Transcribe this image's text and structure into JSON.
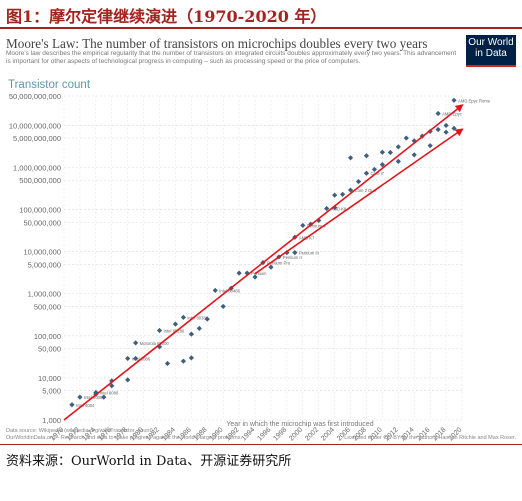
{
  "figure": {
    "caption": "图1：摩尔定律继续演进（1970-2020 年）",
    "source": "资料来源：OurWorld in Data、开源证券研究所"
  },
  "chart_data": {
    "type": "scatter",
    "title": "Moore's Law: The number of transistors on microchips doubles every two years",
    "subtitle": "Moore's law describes the empirical regularity that the number of transistors on integrated circuits doubles approximately every two years. This advancement is important for other aspects of technological progress in computing – such as processing speed or the price of computers.",
    "logo": "Our World in Data",
    "ylabel": "Transistor count",
    "xlabel": "Year in which the microchip was first introduced",
    "yscale": "log",
    "ylim": [
      1000,
      50000000000
    ],
    "xlim": [
      1970,
      2020
    ],
    "grid": true,
    "x_ticks": [
      "1970",
      "1972",
      "1974",
      "1976",
      "1978",
      "1980",
      "1982",
      "1984",
      "1986",
      "1988",
      "1990",
      "1992",
      "1994",
      "1996",
      "1998",
      "2000",
      "2002",
      "2004",
      "2006",
      "2008",
      "2010",
      "2012",
      "2014",
      "2016",
      "2018",
      "2020"
    ],
    "y_ticks": [
      {
        "value": 1000,
        "label": "1,000"
      },
      {
        "value": 5000,
        "label": "5,000"
      },
      {
        "value": 10000,
        "label": "10,000"
      },
      {
        "value": 50000,
        "label": "50,000"
      },
      {
        "value": 100000,
        "label": "100,000"
      },
      {
        "value": 500000,
        "label": "500,000"
      },
      {
        "value": 1000000,
        "label": "1,000,000"
      },
      {
        "value": 5000000,
        "label": "5,000,000"
      },
      {
        "value": 10000000,
        "label": "10,000,000"
      },
      {
        "value": 50000000,
        "label": "50,000,000"
      },
      {
        "value": 100000000,
        "label": "100,000,000"
      },
      {
        "value": 500000000,
        "label": "500,000,000"
      },
      {
        "value": 1000000000,
        "label": "1,000,000,000"
      },
      {
        "value": 5000000000,
        "label": "5,000,000,000"
      },
      {
        "value": 10000000000,
        "label": "10,000,000,000"
      },
      {
        "value": 50000000000,
        "label": "50,000,000,000"
      }
    ],
    "point_color": "#3d5f80",
    "trend_color": "#e3141b",
    "points": [
      {
        "x": 1971,
        "y": 2300,
        "label": "Intel 4004"
      },
      {
        "x": 1972,
        "y": 3500,
        "label": "Intel 8008"
      },
      {
        "x": 1974,
        "y": 4500,
        "label": "Intel 8080"
      },
      {
        "x": 1974,
        "y": 4100
      },
      {
        "x": 1975,
        "y": 3500
      },
      {
        "x": 1976,
        "y": 6500
      },
      {
        "x": 1976,
        "y": 8500
      },
      {
        "x": 1978,
        "y": 29000,
        "label": "Intel 8086"
      },
      {
        "x": 1978,
        "y": 9000
      },
      {
        "x": 1979,
        "y": 68000,
        "label": "Motorola 68000"
      },
      {
        "x": 1979,
        "y": 29000
      },
      {
        "x": 1982,
        "y": 134000,
        "label": "Intel 80286"
      },
      {
        "x": 1982,
        "y": 55000
      },
      {
        "x": 1983,
        "y": 22000
      },
      {
        "x": 1984,
        "y": 190000
      },
      {
        "x": 1985,
        "y": 275000,
        "label": "Intel 80386"
      },
      {
        "x": 1985,
        "y": 25000
      },
      {
        "x": 1986,
        "y": 30000
      },
      {
        "x": 1986,
        "y": 110000
      },
      {
        "x": 1987,
        "y": 150000
      },
      {
        "x": 1988,
        "y": 250000
      },
      {
        "x": 1989,
        "y": 1200000,
        "label": "Intel 80486"
      },
      {
        "x": 1990,
        "y": 500000
      },
      {
        "x": 1991,
        "y": 1350000
      },
      {
        "x": 1992,
        "y": 3100000
      },
      {
        "x": 1993,
        "y": 3100000,
        "label": "Pentium"
      },
      {
        "x": 1994,
        "y": 2500000
      },
      {
        "x": 1995,
        "y": 5500000,
        "label": "Pentium Pro"
      },
      {
        "x": 1996,
        "y": 4300000
      },
      {
        "x": 1997,
        "y": 7500000,
        "label": "Pentium II"
      },
      {
        "x": 1998,
        "y": 9500000
      },
      {
        "x": 1999,
        "y": 9500000,
        "label": "Pentium III"
      },
      {
        "x": 1999,
        "y": 22000000,
        "label": "AMD K7"
      },
      {
        "x": 2000,
        "y": 42000000,
        "label": "Pentium 4"
      },
      {
        "x": 2001,
        "y": 45000000
      },
      {
        "x": 2002,
        "y": 55000000
      },
      {
        "x": 2003,
        "y": 105900000,
        "label": "AMD K8"
      },
      {
        "x": 2004,
        "y": 112000000
      },
      {
        "x": 2004,
        "y": 220000000
      },
      {
        "x": 2005,
        "y": 230000000
      },
      {
        "x": 2006,
        "y": 291000000,
        "label": "Core 2 Duo"
      },
      {
        "x": 2006,
        "y": 1700000000
      },
      {
        "x": 2007,
        "y": 463000000
      },
      {
        "x": 2008,
        "y": 731000000,
        "label": "Core i7"
      },
      {
        "x": 2008,
        "y": 1900000000
      },
      {
        "x": 2009,
        "y": 900000000
      },
      {
        "x": 2010,
        "y": 1170000000
      },
      {
        "x": 2010,
        "y": 2300000000
      },
      {
        "x": 2011,
        "y": 2270000000
      },
      {
        "x": 2012,
        "y": 1400000000
      },
      {
        "x": 2012,
        "y": 3100000000
      },
      {
        "x": 2013,
        "y": 5000000000
      },
      {
        "x": 2014,
        "y": 2000000000
      },
      {
        "x": 2014,
        "y": 4300000000
      },
      {
        "x": 2015,
        "y": 5560000000
      },
      {
        "x": 2016,
        "y": 7200000000
      },
      {
        "x": 2016,
        "y": 3300000000
      },
      {
        "x": 2017,
        "y": 8000000000
      },
      {
        "x": 2017,
        "y": 19200000000,
        "label": "AMD Epyc"
      },
      {
        "x": 2018,
        "y": 6900000000
      },
      {
        "x": 2018,
        "y": 10000000000
      },
      {
        "x": 2019,
        "y": 39540000000,
        "label": "AMD Epyc Rome"
      },
      {
        "x": 2019,
        "y": 8500000000
      }
    ],
    "trends": [
      {
        "from": [
          1970,
          1000
        ],
        "to": [
          2020,
          30000000000
        ]
      },
      {
        "from": [
          1994,
          3000000
        ],
        "to": [
          2020,
          8000000000
        ]
      }
    ],
    "footer_left": "Data source: Wikipedia (wikipedia.org/wiki/Transistor_count)",
    "footer_left2": "OurWorldinData.org – Research and data to make progress against the world's largest problems.",
    "footer_right": "Licensed under CC-BY by the authors Hannah Ritchie and Max Roser."
  }
}
